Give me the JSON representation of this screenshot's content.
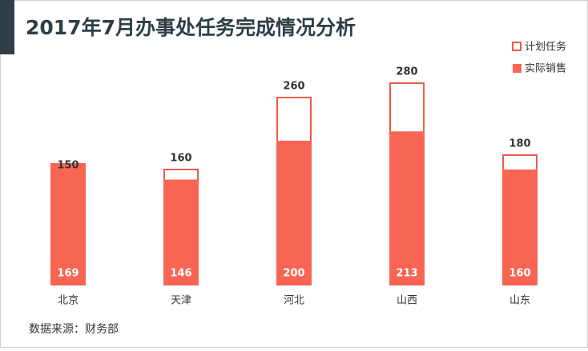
{
  "chart_data": {
    "type": "bar",
    "title": "2017年7月办事处任务完成情况分析",
    "categories": [
      "北京",
      "天津",
      "河北",
      "山西",
      "山东"
    ],
    "series": [
      {
        "name": "计划任务",
        "color": "#ee5b48",
        "values": [
          150,
          160,
          260,
          280,
          180
        ]
      },
      {
        "name": "实际销售",
        "color": "#f96553",
        "values": [
          169,
          146,
          200,
          213,
          160
        ]
      }
    ],
    "ylim": [
      0,
      300
    ],
    "source": "数据来源：财务部"
  }
}
